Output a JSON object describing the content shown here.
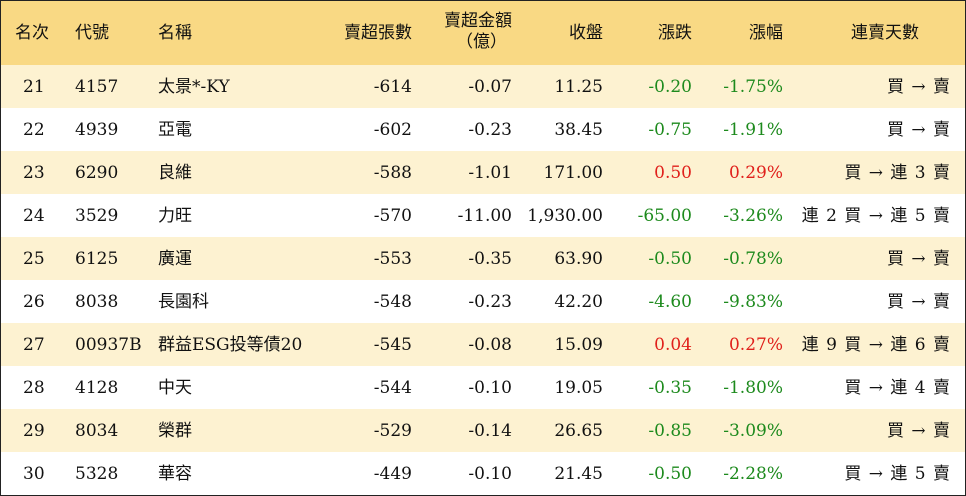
{
  "headers": {
    "rank": "名次",
    "code": "代號",
    "name": "名稱",
    "net_sell_lots": "賣超張數",
    "net_sell_amount_line1": "賣超金額",
    "net_sell_amount_line2": "（億）",
    "close": "收盤",
    "change": "漲跌",
    "pct": "漲幅",
    "consecutive": "連賣天數"
  },
  "colors": {
    "header_bg": "#f9d984",
    "alt_row_bg": "#fdf2d1",
    "up": "#e0201b",
    "down": "#1d8a1d"
  },
  "rows": [
    {
      "rank": "21",
      "code": "4157",
      "name": "太景*-KY",
      "lots": "-614",
      "amount": "-0.07",
      "close": "11.25",
      "change": "-0.20",
      "pct": "-1.75%",
      "direction": "down",
      "consecutive": "買 → 賣"
    },
    {
      "rank": "22",
      "code": "4939",
      "name": "亞電",
      "lots": "-602",
      "amount": "-0.23",
      "close": "38.45",
      "change": "-0.75",
      "pct": "-1.91%",
      "direction": "down",
      "consecutive": "買 → 賣"
    },
    {
      "rank": "23",
      "code": "6290",
      "name": "良維",
      "lots": "-588",
      "amount": "-1.01",
      "close": "171.00",
      "change": "0.50",
      "pct": "0.29%",
      "direction": "up",
      "consecutive": "買 → 連 3 賣"
    },
    {
      "rank": "24",
      "code": "3529",
      "name": "力旺",
      "lots": "-570",
      "amount": "-11.00",
      "close": "1,930.00",
      "change": "-65.00",
      "pct": "-3.26%",
      "direction": "down",
      "consecutive": "連 2 買 → 連 5 賣"
    },
    {
      "rank": "25",
      "code": "6125",
      "name": "廣運",
      "lots": "-553",
      "amount": "-0.35",
      "close": "63.90",
      "change": "-0.50",
      "pct": "-0.78%",
      "direction": "down",
      "consecutive": "買 → 賣"
    },
    {
      "rank": "26",
      "code": "8038",
      "name": "長園科",
      "lots": "-548",
      "amount": "-0.23",
      "close": "42.20",
      "change": "-4.60",
      "pct": "-9.83%",
      "direction": "down",
      "consecutive": "買 → 賣"
    },
    {
      "rank": "27",
      "code": "00937B",
      "name": "群益ESG投等債20",
      "lots": "-545",
      "amount": "-0.08",
      "close": "15.09",
      "change": "0.04",
      "pct": "0.27%",
      "direction": "up",
      "consecutive": "連 9 買 → 連 6 賣"
    },
    {
      "rank": "28",
      "code": "4128",
      "name": "中天",
      "lots": "-544",
      "amount": "-0.10",
      "close": "19.05",
      "change": "-0.35",
      "pct": "-1.80%",
      "direction": "down",
      "consecutive": "買 → 連 4 賣"
    },
    {
      "rank": "29",
      "code": "8034",
      "name": "榮群",
      "lots": "-529",
      "amount": "-0.14",
      "close": "26.65",
      "change": "-0.85",
      "pct": "-3.09%",
      "direction": "down",
      "consecutive": "買 → 賣"
    },
    {
      "rank": "30",
      "code": "5328",
      "name": "華容",
      "lots": "-449",
      "amount": "-0.10",
      "close": "21.45",
      "change": "-0.50",
      "pct": "-2.28%",
      "direction": "down",
      "consecutive": "買 → 連 5 賣"
    }
  ]
}
